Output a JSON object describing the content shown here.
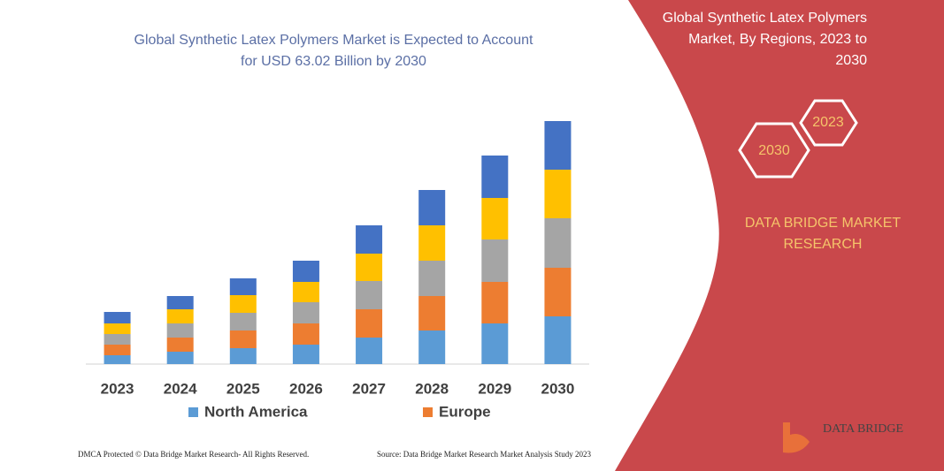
{
  "chart_data": {
    "type": "stacked-bar",
    "title": [
      "Global Synthetic Latex Polymers Market is Expected to Account",
      "for USD 63.02 Billion by 2030"
    ],
    "categories": [
      "2023",
      "2024",
      "2025",
      "2026",
      "2027",
      "2028",
      "2029",
      "2030"
    ],
    "series": [
      {
        "name": "North America",
        "color": "#5b9bd5",
        "values": [
          10,
          14,
          18,
          22,
          30,
          38,
          46,
          54
        ]
      },
      {
        "name": "Europe",
        "color": "#ed7d31",
        "values": [
          12,
          16,
          20,
          24,
          32,
          39,
          47,
          55
        ]
      },
      {
        "color": "#a5a5a5",
        "values": [
          12,
          16,
          20,
          24,
          32,
          40,
          48,
          56
        ]
      },
      {
        "color": "#ffc000",
        "values": [
          12,
          16,
          20,
          23,
          31,
          40,
          47,
          55
        ]
      },
      {
        "color": "#4472c4",
        "values": [
          13,
          15,
          19,
          24,
          32,
          40,
          48,
          55
        ]
      }
    ],
    "ylim": [
      0,
      275
    ]
  },
  "panel": {
    "title": [
      "Global Synthetic Latex Polymers",
      "Market, By Regions, 2023 to",
      "2030"
    ],
    "hex_small": "2023",
    "hex_large": "2030",
    "brand": [
      "DATA BRIDGE MARKET",
      "RESEARCH"
    ],
    "logo": "DATA BRIDGE"
  },
  "footer": {
    "left": "DMCA Protected © Data Bridge Market Research-  All Rights Reserved.",
    "right": "Source: Data Bridge Market Research  Market Analysis Study 2023"
  }
}
